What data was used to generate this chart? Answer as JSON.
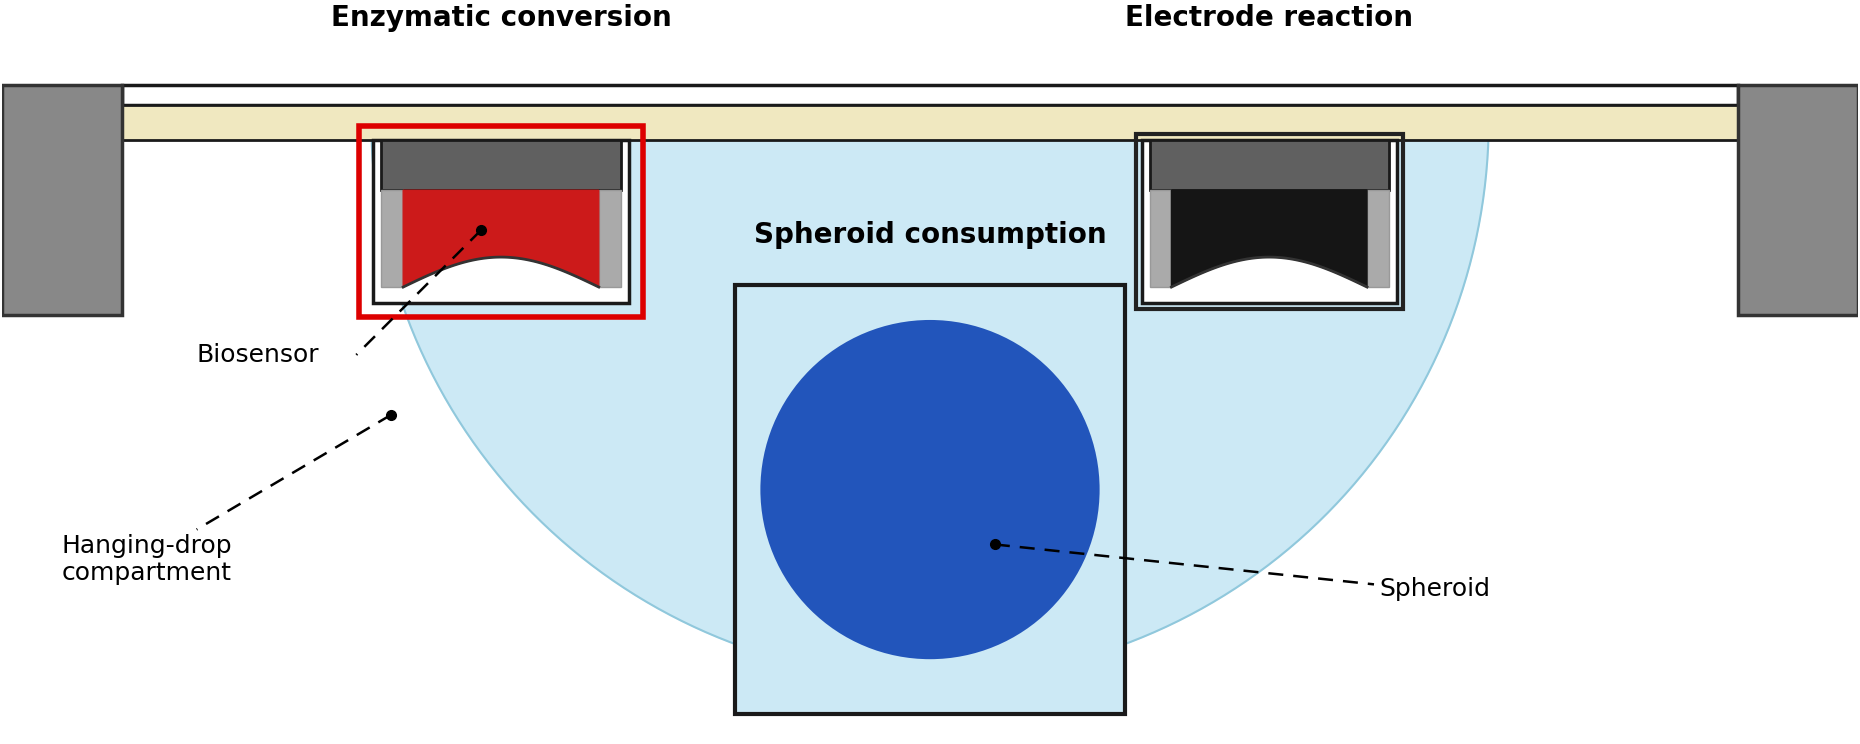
{
  "bg_color": "#ffffff",
  "drop_color": "#cce9f5",
  "plate_white_color": "#ffffff",
  "plate_cream_color": "#f0e8c0",
  "plate_border_color": "#1a1a1a",
  "sensor_gray_color": "#606060",
  "sensor_lgray_color": "#aaaaaa",
  "sensor_red_color": "#cc1a1a",
  "sensor_black_color": "#151515",
  "red_box_color": "#dd0000",
  "spheroid_blue": "#2255bb",
  "support_gray": "#888888",
  "label_enzymatic": "Enzymatic conversion",
  "label_electrode": "Electrode reaction",
  "label_biosensor": "Biosensor",
  "label_spheroid_consumption": "Spheroid consumption",
  "label_spheroid": "Spheroid",
  "label_hanging_drop": "Hanging-drop\ncompartment",
  "figsize": [
    18.6,
    7.44
  ],
  "dpi": 100
}
